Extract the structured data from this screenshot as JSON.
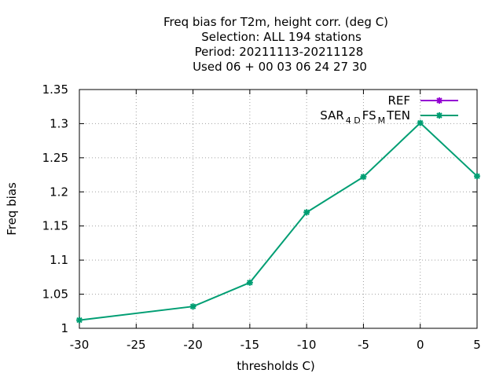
{
  "chart_data": {
    "type": "line",
    "title_lines": [
      "Freq bias  for T2m, height corr. (deg C)",
      "Selection: ALL    194 stations",
      "Period: 20211113-20211128",
      "Used  06 + 00 03 06 24 27 30"
    ],
    "xlabel": "thresholds C)",
    "ylabel": "Freq bias",
    "xlim": [
      -30,
      5
    ],
    "ylim": [
      1,
      1.35
    ],
    "x_ticks": [
      -30,
      -25,
      -20,
      -15,
      -10,
      -5,
      0,
      5
    ],
    "y_ticks": [
      1,
      1.05,
      1.1,
      1.15,
      1.2,
      1.25,
      1.3,
      1.35
    ],
    "x_tick_labels": [
      "-30",
      "-25",
      "-20",
      "-15",
      "-10",
      "-5",
      "0",
      "5"
    ],
    "y_tick_labels": [
      "1",
      "1.05",
      "1.1",
      "1.15",
      "1.2",
      "1.25",
      "1.3",
      "1.35"
    ],
    "grid": true,
    "legend_position": "top-right",
    "series": [
      {
        "name": "REF",
        "color": "#9400d3",
        "x": [],
        "y": []
      },
      {
        "name_parts": {
          "base": "SAR",
          "sub1": "4 D",
          "mid": "FS",
          "sub2": "M",
          "tail": "TEN"
        },
        "color": "#009e73",
        "x": [
          -30,
          -20,
          -15,
          -10,
          -5,
          0,
          5
        ],
        "y": [
          1.012,
          1.032,
          1.067,
          1.17,
          1.222,
          1.301,
          1.223
        ]
      }
    ]
  }
}
